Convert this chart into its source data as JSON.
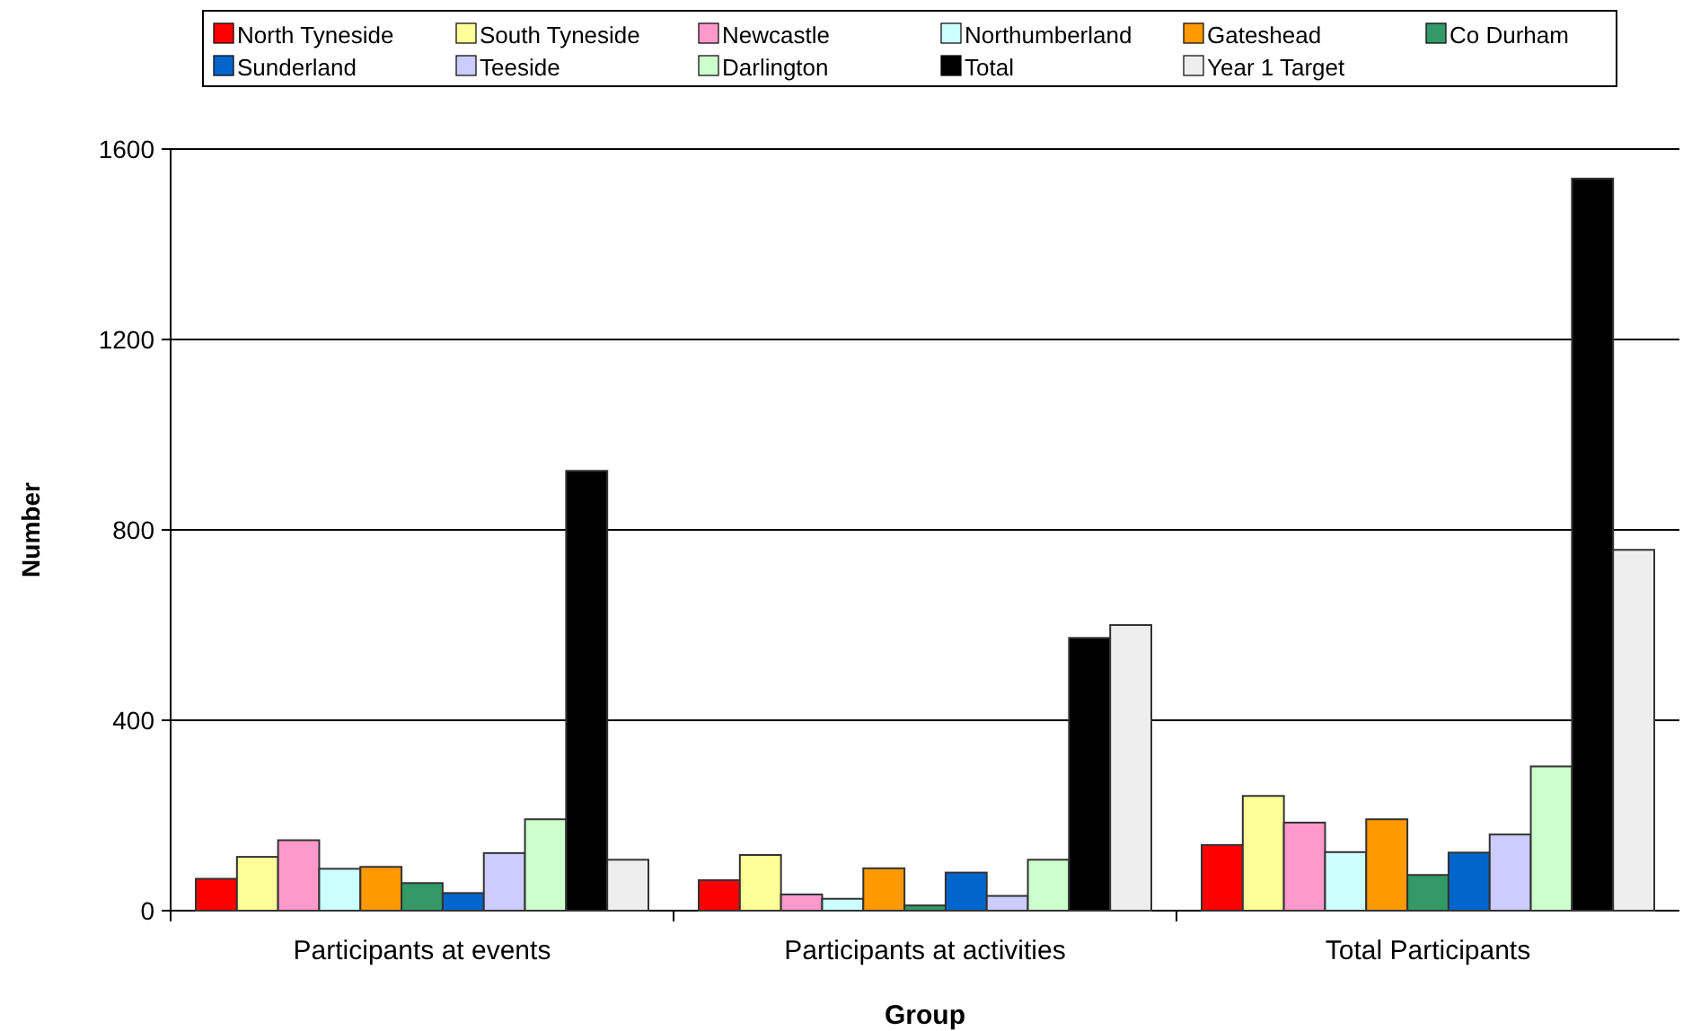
{
  "chart_data": {
    "type": "bar",
    "xlabel": "Group",
    "ylabel": "Number",
    "categories": [
      "Participants at events",
      "Participants at activities",
      "Total Participants"
    ],
    "series": [
      {
        "name": "North Tyneside",
        "color": "#ff0000",
        "values": [
          67,
          64,
          138
        ]
      },
      {
        "name": "South Tyneside",
        "color": "#ffff99",
        "values": [
          113,
          117,
          241
        ]
      },
      {
        "name": "Newcastle",
        "color": "#ff99cc",
        "values": [
          148,
          34,
          185
        ]
      },
      {
        "name": "Northumberland",
        "color": "#ccffff",
        "values": [
          88,
          25,
          123
        ]
      },
      {
        "name": "Gateshead",
        "color": "#ff9900",
        "values": [
          92,
          89,
          192
        ]
      },
      {
        "name": "Co Durham",
        "color": "#339966",
        "values": [
          58,
          11,
          75
        ]
      },
      {
        "name": "Sunderland",
        "color": "#0066cc",
        "values": [
          37,
          80,
          122
        ]
      },
      {
        "name": "Teeside",
        "color": "#ccccff",
        "values": [
          121,
          31,
          160
        ]
      },
      {
        "name": "Darlington",
        "color": "#ccffcc",
        "values": [
          192,
          107,
          303
        ]
      },
      {
        "name": "Total",
        "color": "#000000",
        "values": [
          924,
          573,
          1538
        ]
      },
      {
        "name": "Year 1 Target",
        "color": "#eeeeee",
        "values": [
          107,
          600,
          758
        ]
      }
    ],
    "ylim": [
      0,
      1600
    ],
    "yticks": [
      0,
      400,
      800,
      1200,
      1600
    ],
    "grid": "y",
    "legend": "top"
  }
}
